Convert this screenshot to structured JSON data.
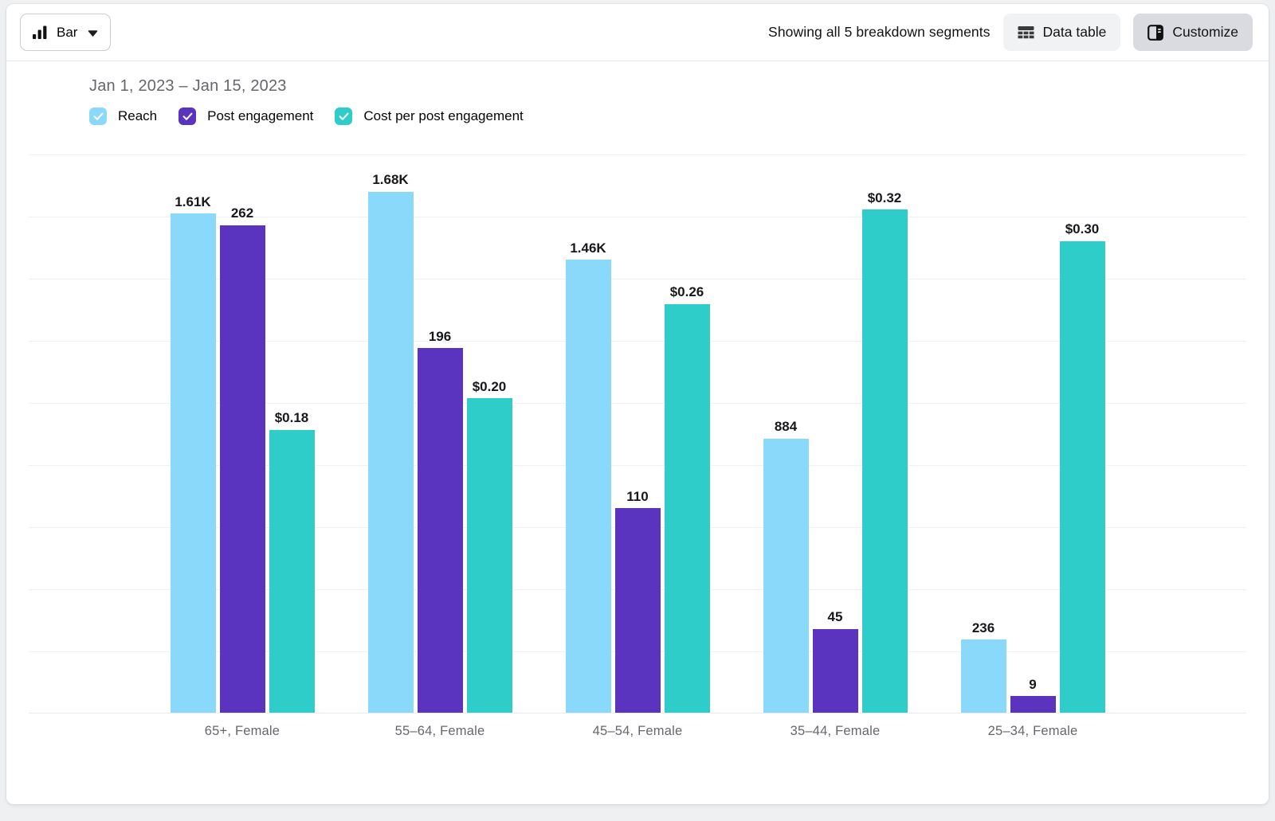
{
  "toolbar": {
    "chart_type_label": "Bar",
    "segments_text": "Showing all 5 breakdown segments",
    "data_table_label": "Data table",
    "customize_label": "Customize"
  },
  "chart_data": {
    "type": "bar",
    "date_range": "Jan 1, 2023 – Jan 15, 2023",
    "categories": [
      "65+, Female",
      "55–64, Female",
      "45–54, Female",
      "35–44, Female",
      "25–34, Female"
    ],
    "series": [
      {
        "name": "Reach",
        "color": "#8BD9FA",
        "checked": true,
        "axis_max": 1800,
        "values": [
          1610,
          1680,
          1460,
          884,
          236
        ],
        "labels": [
          "1.61K",
          "1.68K",
          "1.46K",
          "884",
          "236"
        ]
      },
      {
        "name": "Post engagement",
        "color": "#5A34BF",
        "checked": true,
        "axis_max": 300,
        "values": [
          262,
          196,
          110,
          45,
          9
        ],
        "labels": [
          "262",
          "196",
          "110",
          "45",
          "9"
        ]
      },
      {
        "name": "Cost per post engagement",
        "color": "#2FCDC9",
        "checked": true,
        "axis_max": 0.355,
        "values": [
          0.18,
          0.2,
          0.26,
          0.32,
          0.3
        ],
        "labels": [
          "$0.18",
          "$0.20",
          "$0.26",
          "$0.32",
          "$0.30"
        ]
      }
    ],
    "gridlines": "on",
    "legend_position": "top-left",
    "value_labels": "above-bars"
  }
}
